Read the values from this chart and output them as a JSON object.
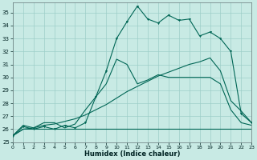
{
  "bg_color": "#c8eae4",
  "grid_color": "#9dcec8",
  "line_color": "#006655",
  "x_label": "Humidex (Indice chaleur)",
  "ylim": [
    25,
    35.8
  ],
  "xlim": [
    0,
    23
  ],
  "yticks": [
    25,
    26,
    27,
    28,
    29,
    30,
    31,
    32,
    33,
    34,
    35
  ],
  "xticks": [
    0,
    1,
    2,
    3,
    4,
    5,
    6,
    7,
    8,
    9,
    10,
    11,
    12,
    13,
    14,
    15,
    16,
    17,
    18,
    19,
    20,
    21,
    22,
    23
  ],
  "line_flat_x": [
    0,
    1,
    2,
    3,
    4,
    5,
    6,
    7,
    8,
    9,
    10,
    11,
    12,
    13,
    14,
    15,
    16,
    17,
    18,
    19,
    20,
    21,
    22,
    23
  ],
  "line_flat_y": [
    25.5,
    26.0,
    26.0,
    26.0,
    26.0,
    26.0,
    26.0,
    26.0,
    26.0,
    26.0,
    26.0,
    26.0,
    26.0,
    26.0,
    26.0,
    26.0,
    26.0,
    26.0,
    26.0,
    26.0,
    26.0,
    26.0,
    26.0,
    26.0
  ],
  "line_slope_x": [
    0,
    1,
    2,
    3,
    4,
    5,
    6,
    7,
    8,
    9,
    10,
    11,
    12,
    13,
    14,
    15,
    16,
    17,
    18,
    19,
    20,
    21,
    22,
    23
  ],
  "line_slope_y": [
    25.5,
    26.0,
    26.1,
    26.3,
    26.4,
    26.6,
    26.8,
    27.1,
    27.5,
    27.9,
    28.4,
    28.9,
    29.3,
    29.7,
    30.1,
    30.4,
    30.7,
    31.0,
    31.2,
    31.5,
    30.5,
    28.2,
    27.4,
    26.5
  ],
  "line_wavy_x": [
    0,
    1,
    2,
    3,
    4,
    5,
    6,
    7,
    8,
    9,
    10,
    11,
    12,
    13,
    14,
    15,
    16,
    17,
    18,
    19,
    20,
    21,
    22,
    23
  ],
  "line_wavy_y": [
    25.5,
    26.3,
    26.1,
    26.5,
    26.5,
    26.1,
    26.4,
    27.5,
    28.5,
    29.5,
    31.4,
    31.0,
    29.5,
    29.8,
    30.2,
    30.0,
    30.0,
    30.0,
    30.0,
    30.0,
    29.5,
    27.5,
    26.5,
    26.3
  ],
  "line_top_x": [
    0,
    1,
    2,
    3,
    4,
    5,
    6,
    7,
    8,
    9,
    10,
    11,
    12,
    13,
    14,
    15,
    16,
    17,
    18,
    19,
    20,
    21,
    22,
    23
  ],
  "line_top_y": [
    25.5,
    26.2,
    26.0,
    26.2,
    26.0,
    26.3,
    26.1,
    26.5,
    28.5,
    30.5,
    33.0,
    34.3,
    35.5,
    34.5,
    34.2,
    34.8,
    34.4,
    34.5,
    33.2,
    33.5,
    33.0,
    32.0,
    27.2,
    26.5
  ],
  "markers_x": [
    0,
    1,
    2,
    3,
    4,
    5,
    6,
    7,
    8,
    9,
    10,
    11,
    12,
    13,
    14,
    15,
    16,
    17,
    18,
    19,
    20,
    21,
    22,
    23
  ],
  "markers_y": [
    25.5,
    26.2,
    26.0,
    26.2,
    26.0,
    26.3,
    26.1,
    26.5,
    28.5,
    30.5,
    33.0,
    34.3,
    35.5,
    34.5,
    34.2,
    34.8,
    34.4,
    34.5,
    33.2,
    33.5,
    33.0,
    32.0,
    27.2,
    26.5
  ]
}
